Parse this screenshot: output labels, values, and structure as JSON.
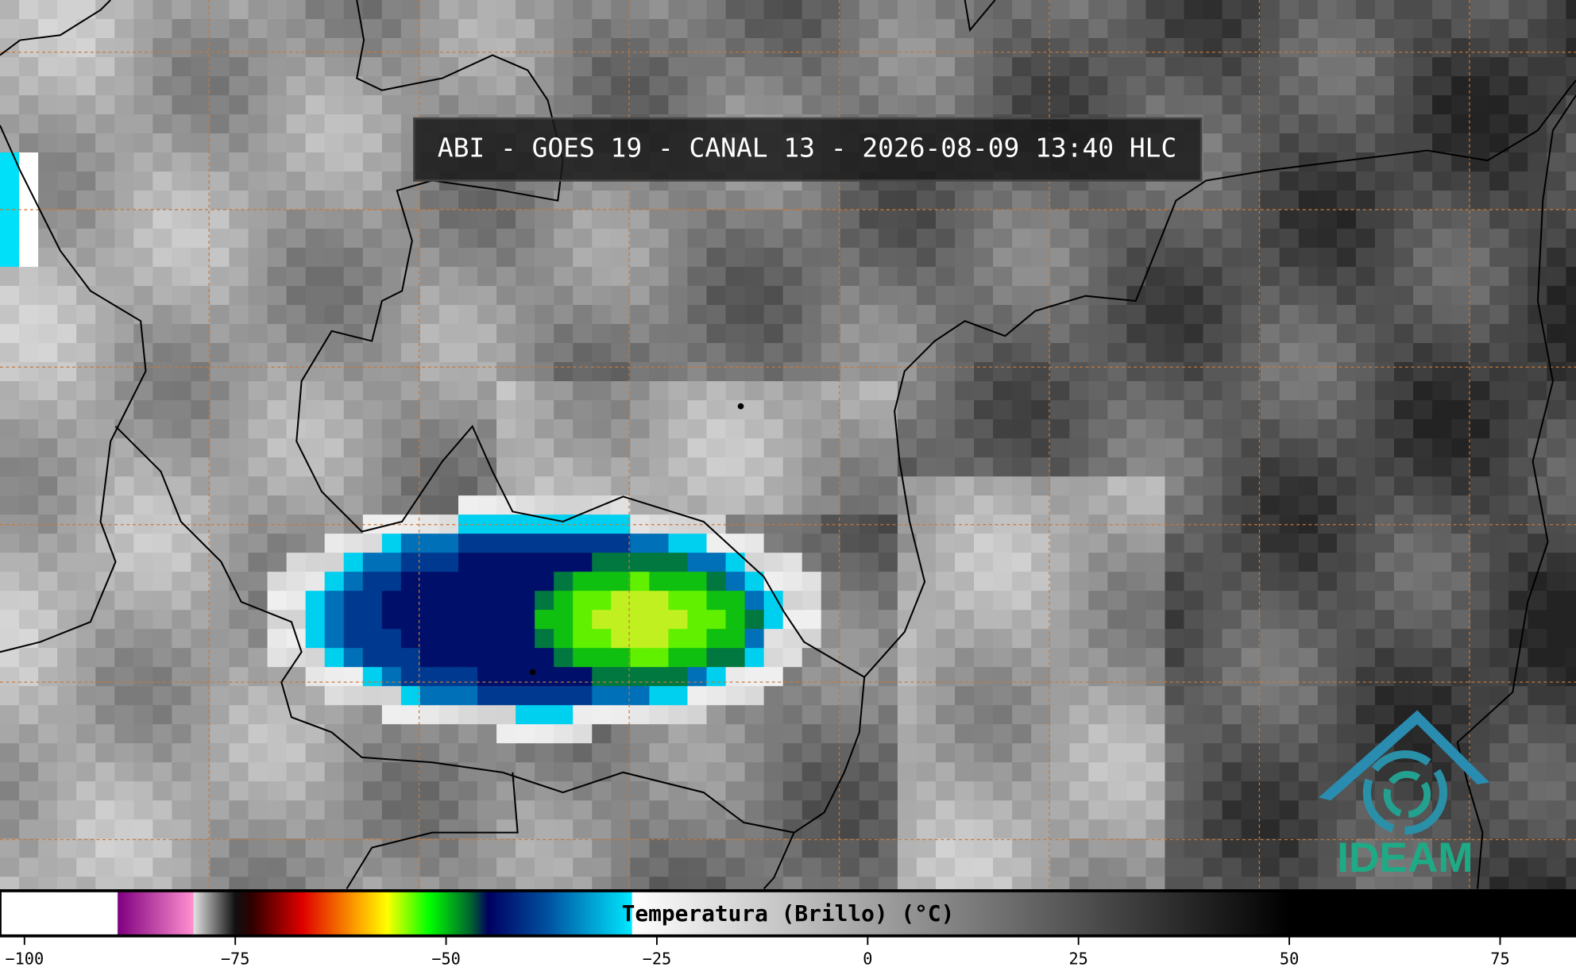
{
  "title": "ABI - GOES 19 - CANAL 13 - 2026-08-09 13:40 HLC",
  "logo": "IDEAM",
  "colorbar": {
    "label": "Temperatura (Brillo) (°C)",
    "lim": [
      -102.9,
      84
    ],
    "ticks": [
      {
        "value": -100,
        "label": "−100"
      },
      {
        "value": -75,
        "label": "−75"
      },
      {
        "value": -50,
        "label": "−50"
      },
      {
        "value": -25,
        "label": "−25"
      },
      0,
      25,
      50,
      75
    ],
    "stops": [
      {
        "value": -102.9,
        "color": "#ffffff"
      },
      {
        "value": -89,
        "color": "#ffffff"
      },
      {
        "value": -88.9,
        "color": "#800080"
      },
      {
        "value": -80,
        "color": "#ff90d0"
      },
      {
        "value": -79.9,
        "color": "#e0e0e0"
      },
      {
        "value": -75,
        "color": "#101010"
      },
      {
        "value": -73,
        "color": "#300000"
      },
      {
        "value": -67,
        "color": "#e00000"
      },
      {
        "value": -60,
        "color": "#ffb000"
      },
      {
        "value": -57,
        "color": "#ffff00"
      },
      {
        "value": -52,
        "color": "#00ff00"
      },
      {
        "value": -47,
        "color": "#006030"
      },
      {
        "value": -45,
        "color": "#000060"
      },
      {
        "value": -38,
        "color": "#0050a0"
      },
      {
        "value": -28,
        "color": "#00e8ff"
      },
      {
        "value": -27.9,
        "color": "#ffffff"
      },
      {
        "value": 50,
        "color": "#000000"
      },
      {
        "value": 84,
        "color": "#000000"
      }
    ]
  }
}
